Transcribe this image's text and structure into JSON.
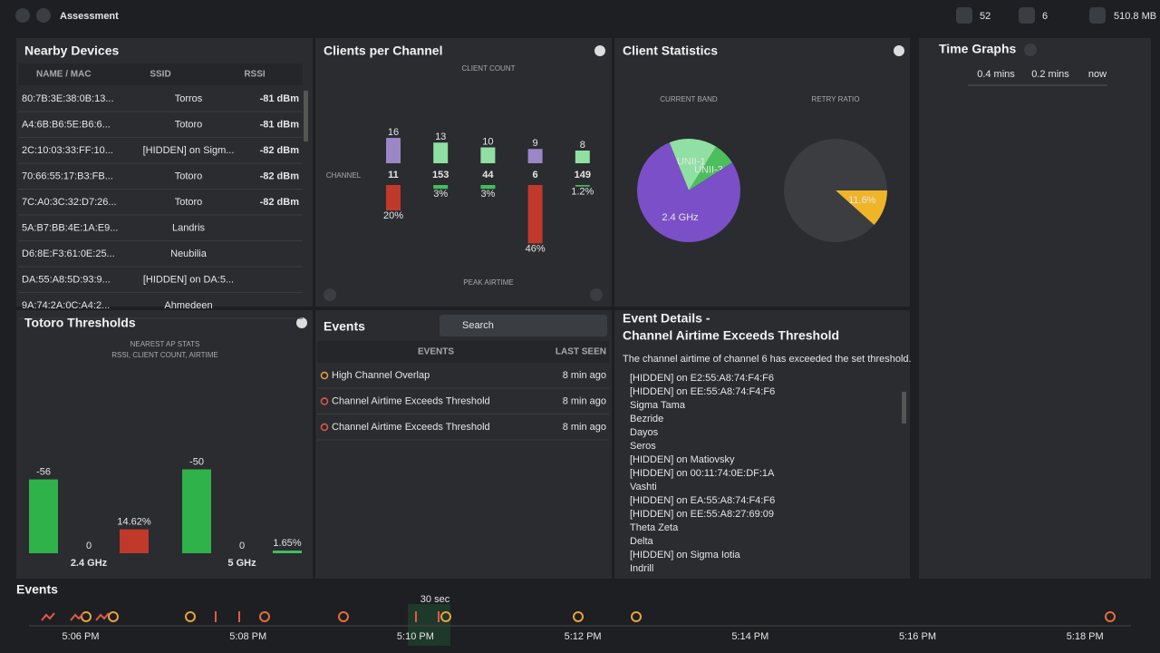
{
  "header": {
    "title": "Assessment",
    "stats": [
      "52",
      "6",
      "510.8 MB"
    ]
  },
  "nearby_devices": {
    "title": "Nearby Devices",
    "columns": [
      "NAME / MAC",
      "SSID",
      "RSSI"
    ],
    "rows": [
      {
        "mac": "80:7B:3E:38:0B:13...",
        "ssid": "Torros",
        "rssi": "-81 dBm"
      },
      {
        "mac": "A4:6B:B6:5E:B6:6...",
        "ssid": "Totoro",
        "rssi": "-81 dBm"
      },
      {
        "mac": "2C:10:03:33:FF:10...",
        "ssid": "[HIDDEN] on Sigm...",
        "rssi": "-82 dBm"
      },
      {
        "mac": "70:66:55:17:B3:FB...",
        "ssid": "Totoro",
        "rssi": "-82 dBm"
      },
      {
        "mac": "7C:A0:3C:32:D7:26...",
        "ssid": "Totoro",
        "rssi": "-82 dBm"
      },
      {
        "mac": "5A:B7:BB:4E:1A:E9...",
        "ssid": "Landris"
      },
      {
        "mac": "D6:8E:F3:61:0E:25...",
        "ssid": "Neubilia"
      },
      {
        "mac": "DA:55:A8:5D:93:9...",
        "ssid": "[HIDDEN] on DA:5..."
      },
      {
        "mac": "9A:74:2A:0C:A4:2...",
        "ssid": "Ahmedeen"
      }
    ]
  },
  "clients_per_channel": {
    "title": "Clients per Channel",
    "count_label": "CLIENT COUNT",
    "channel_label": "CHANNEL",
    "airtime_label": "PEAK AIRTIME",
    "channels": [
      {
        "channel": 11,
        "clients": 16,
        "color": "#9b86c6",
        "airtime": {
          "value": 20,
          "label": "20%"
        },
        "airtime_color": "#c0392b"
      },
      {
        "channel": 153,
        "clients": 13,
        "color": "#8fe0a2",
        "airtime": {
          "value": 3,
          "label": "3%"
        },
        "airtime_color": "#3fbf5f"
      },
      {
        "channel": 44,
        "clients": 10,
        "color": "#8fe0a2",
        "airtime": {
          "value": 3,
          "label": "3%"
        },
        "airtime_color": "#3fbf5f"
      },
      {
        "channel": 6,
        "clients": 9,
        "color": "#9b86c6",
        "airtime": {
          "value": 46,
          "label": "46%"
        },
        "airtime_color": "#c0392b"
      },
      {
        "channel": 149,
        "clients": 8,
        "color": "#8fe0a2",
        "airtime": {
          "value": 1.2,
          "label": "1.2%"
        },
        "airtime_color": "#3fbf5f"
      }
    ]
  },
  "client_statistics": {
    "title": "Client Statistics",
    "pies": [
      {
        "label": "CURRENT BAND",
        "start": -112,
        "slices": [
          {
            "name": "UNII-1",
            "value": 15,
            "color": "#8fe0a2"
          },
          {
            "name": "UNII-3",
            "value": 7,
            "color": "#4cbf5c"
          },
          {
            "name": "2.4 GHz",
            "value": 78,
            "color": "#7a4fc8"
          }
        ]
      },
      {
        "label": "RETRY RATIO",
        "start": 0,
        "slices": [
          {
            "name": "11.6%",
            "value": 11.6,
            "color": "#f0b429"
          },
          {
            "name": null,
            "value": 88.4,
            "color": "#3b3d40"
          }
        ]
      }
    ]
  },
  "time_graphs": {
    "title": "Time Graphs",
    "labels": [
      "0.4 mins",
      "0.2 mins",
      "now"
    ]
  },
  "thresholds": {
    "title": "Totoro Thresholds",
    "subtitle": [
      "NEAREST AP STATS",
      "RSSI, CLIENT COUNT, AIRTIME"
    ],
    "groups": [
      {
        "name": "2.4 GHz",
        "rssi": -56,
        "client_count": 0,
        "airtime": {
          "value": 14.62,
          "label": "14.62%"
        },
        "airtime_color": "#c0392b"
      },
      {
        "name": "5 GHz",
        "rssi": -50,
        "client_count": 0,
        "airtime": {
          "value": 1.65,
          "label": "1.65%"
        },
        "airtime_color": "#3fbf5f"
      }
    ]
  },
  "events": {
    "title": "Events",
    "search": "Search",
    "columns": [
      "EVENTS",
      "LAST SEEN"
    ],
    "rows": [
      {
        "name": "High Channel Overlap",
        "time": "8 min ago"
      },
      {
        "name": "Channel Airtime Exceeds Threshold",
        "time": "8 min ago"
      },
      {
        "name": "Channel Airtime Exceeds Threshold",
        "time": "8 min ago"
      }
    ]
  },
  "event_details": {
    "title": "Event Details -",
    "subtitle": "Channel Airtime Exceeds Threshold",
    "description": "The channel airtime of channel 6 has exceeded the set threshold.",
    "items": [
      "[HIDDEN] on E2:55:A8:74:F4:F6",
      "[HIDDEN] on EE:55:A8:74:F4:F6",
      "Sigma Tama",
      "Bezride",
      "Dayos",
      "Seros",
      "[HIDDEN] on Matiovsky",
      "[HIDDEN] on 00:11:74:0E:DF:1A",
      "Vashti",
      "[HIDDEN] on EA:55:A8:74:F4:F6",
      "[HIDDEN] on EE:55:A8:27:69:09",
      "Theta Zeta",
      "Delta",
      "[HIDDEN] on Sigma Iotia",
      "Indrill"
    ]
  },
  "timeline": {
    "title": "Events",
    "window": "30 sec",
    "times": [
      "5:06 PM",
      "5:08 PM",
      "5:10 PM",
      "5:12 PM",
      "5:14 PM",
      "5:16 PM",
      "5:18 PM"
    ]
  }
}
